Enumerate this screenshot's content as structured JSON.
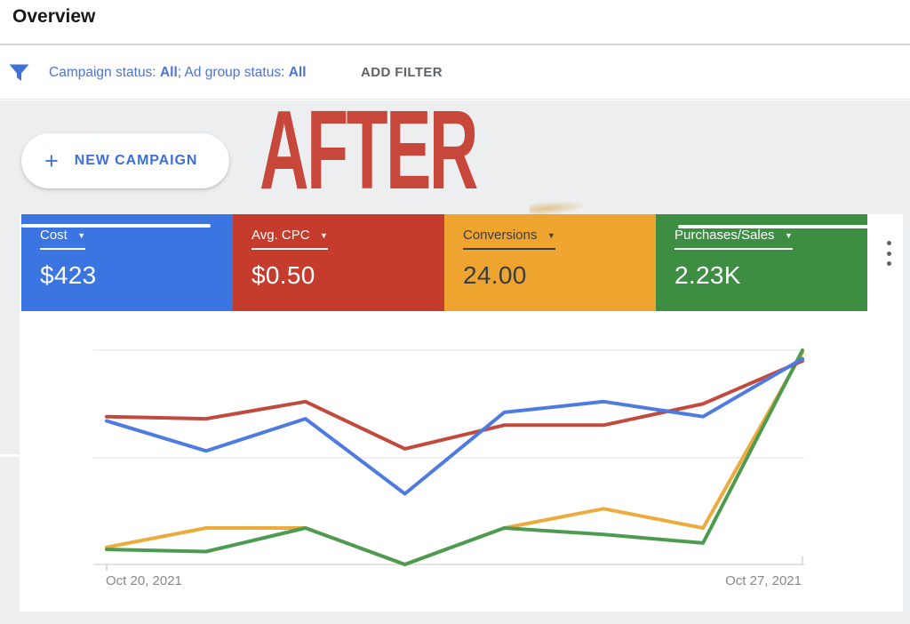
{
  "header": {
    "title": "Overview"
  },
  "filter_bar": {
    "campaign_status_label": "Campaign status: ",
    "campaign_status_value": "All",
    "separator": "; ",
    "ad_group_status_label": "Ad group status: ",
    "ad_group_status_value": "All",
    "add_filter_label": "ADD FILTER",
    "link_color": "#4b74d8"
  },
  "new_campaign_button": {
    "label": "NEW CAMPAIGN"
  },
  "annotation": {
    "text": "AFTER",
    "color": "#c7473b"
  },
  "icons": {
    "plus": "+",
    "dropdown_arrow": "▼"
  },
  "scorecards": [
    {
      "label": "Cost",
      "value": "$423",
      "bg": "#3a75e2",
      "text_color": "#ffffff"
    },
    {
      "label": "Avg. CPC",
      "value": "$0.50",
      "bg": "#c63c2c",
      "text_color": "#ffffff"
    },
    {
      "label": "Conversions",
      "value": "24.00",
      "bg": "#efa42f",
      "text_color": "#3a3d40"
    },
    {
      "label": "Purchases/Sales",
      "value": "2.23K",
      "bg": "#3d8e43",
      "text_color": "#ffffff"
    }
  ],
  "chart_data": {
    "type": "line",
    "x": [
      "Oct 20, 2021",
      "Oct 21, 2021",
      "Oct 22, 2021",
      "Oct 23, 2021",
      "Oct 24, 2021",
      "Oct 25, 2021",
      "Oct 26, 2021",
      "Oct 27, 2021"
    ],
    "x_tick_labels": [
      "Oct 20, 2021",
      "Oct 27, 2021"
    ],
    "y_scale": "normalized_0_100_of_plot_height",
    "ylim": [
      0,
      100
    ],
    "grid": "horizontal",
    "legend": "none",
    "series": [
      {
        "name": "Conversions",
        "color": "#eeab3d",
        "values": [
          8,
          17,
          17,
          0,
          17,
          26,
          17,
          99
        ]
      },
      {
        "name": "Purchases/Sales",
        "color": "#4c9b51",
        "values": [
          7,
          6,
          17,
          0,
          17,
          14,
          10,
          100
        ]
      },
      {
        "name": "Avg. CPC",
        "color": "#c24a3c",
        "values": [
          69,
          68,
          76,
          54,
          65,
          65,
          75,
          95
        ]
      },
      {
        "name": "Cost",
        "color": "#4d7be0",
        "values": [
          67,
          53,
          68,
          33,
          71,
          76,
          69,
          96
        ]
      }
    ]
  }
}
